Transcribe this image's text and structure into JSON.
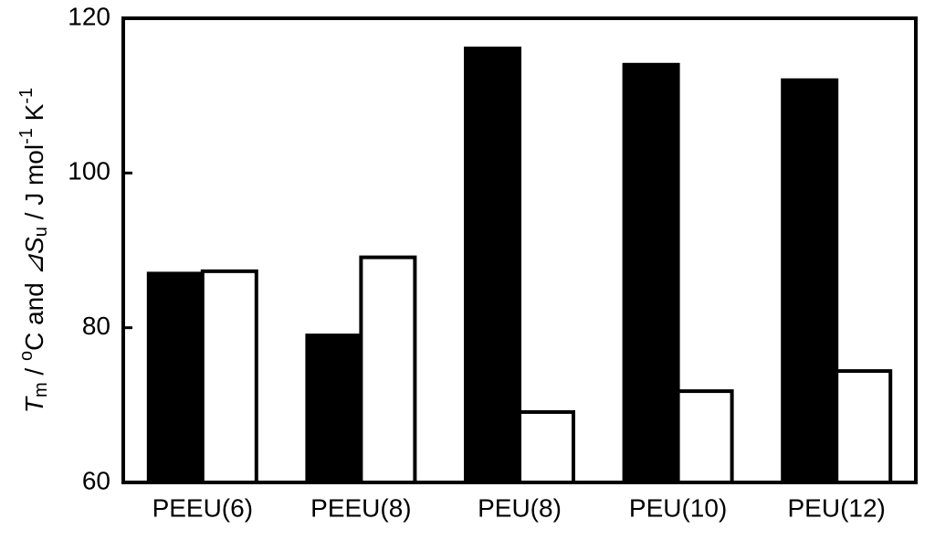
{
  "chart_data": {
    "type": "bar",
    "ylabel": [
      "T",
      "m",
      " / ",
      "o",
      "C and ",
      "⊿S",
      "u",
      " / J mol",
      "-1",
      " K",
      "-1"
    ],
    "categories": [
      "PEEU(6)",
      "PEEU(8)",
      "PEU(8)",
      "PEU(10)",
      "PEU(12)"
    ],
    "series": [
      {
        "color": "#000000",
        "values": [
          87,
          79,
          116.1,
          114,
          112
        ]
      },
      {
        "color": "#ffffff",
        "values": [
          87.3,
          89.1,
          69.1,
          71.8,
          74.4
        ]
      }
    ],
    "ylim": [
      60,
      120
    ],
    "yticks": [
      60,
      80,
      100,
      120
    ]
  }
}
